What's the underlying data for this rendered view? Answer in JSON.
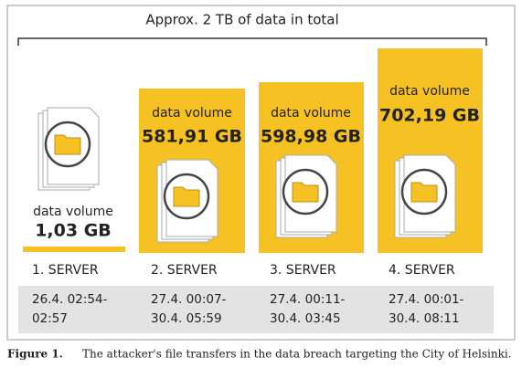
{
  "title": "Approx. 2 TB of data in total",
  "servers": [
    {
      "label": "1. SERVER",
      "volume_label": "data volume",
      "volume": "1,03 GB",
      "time_start": "26.4. 02:54-",
      "time_end": "02:57"
    },
    {
      "label": "2. SERVER",
      "volume_label": "data volume",
      "volume": "581,91 GB",
      "time_start": "27.4. 00:07-",
      "time_end": "30.4. 05:59"
    },
    {
      "label": "3. SERVER",
      "volume_label": "data volume",
      "volume": "598,98 GB",
      "time_start": "27.4. 00:11-",
      "time_end": "30.4. 03:45"
    },
    {
      "label": "4. SERVER",
      "volume_label": "data volume",
      "volume": "702,19 GB",
      "time_start": "27.4. 00:01-",
      "time_end": "30.4. 08:11"
    }
  ],
  "caption": {
    "label": "Figure 1.",
    "text": "The attacker's file transfers in the data breach targeting the City of Helsinki."
  }
}
